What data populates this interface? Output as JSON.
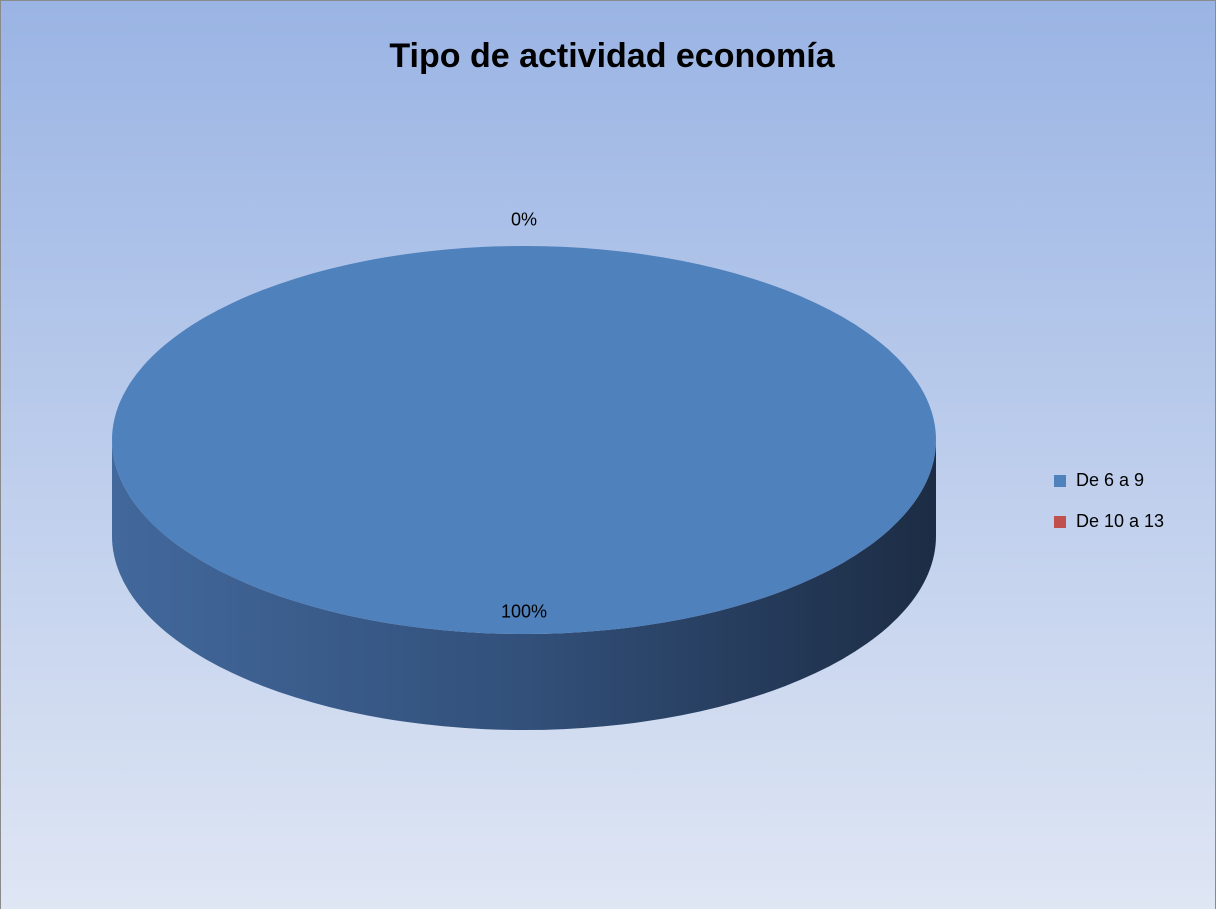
{
  "chart_data": {
    "type": "pie",
    "title": "Tipo de actividad economía",
    "categories": [
      "De 6 a 9",
      "De 10 a 13"
    ],
    "values": [
      100,
      0
    ],
    "value_labels": [
      "100%",
      "0%"
    ],
    "colors": [
      "#4f81bd",
      "#c0504d"
    ],
    "legend": "right"
  }
}
